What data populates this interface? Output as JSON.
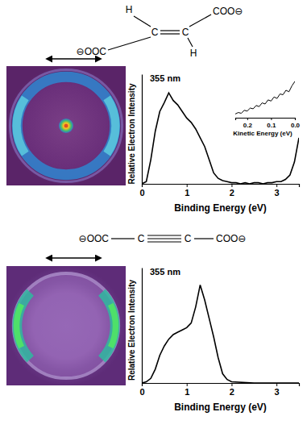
{
  "chart_data": [
    {
      "type": "line",
      "annotation": "355 nm",
      "y_label": "Relative Electron Intensity",
      "x_label": "Binding Energy (eV)",
      "x": [
        0,
        0.1,
        0.2,
        0.3,
        0.4,
        0.5,
        0.6,
        0.7,
        0.8,
        0.9,
        1.0,
        1.1,
        1.2,
        1.3,
        1.4,
        1.5,
        1.6,
        1.7,
        1.8,
        1.9,
        2.0,
        2.1,
        2.2,
        2.3,
        2.4,
        2.5,
        2.6,
        2.7,
        2.8,
        2.9,
        3.0,
        3.1,
        3.2,
        3.3,
        3.4,
        3.5
      ],
      "values": [
        0.0,
        0.02,
        0.22,
        0.48,
        0.66,
        0.74,
        0.83,
        0.76,
        0.72,
        0.66,
        0.6,
        0.56,
        0.5,
        0.42,
        0.34,
        0.22,
        0.1,
        0.05,
        0.03,
        0.02,
        0.01,
        0.01,
        0.0,
        0.01,
        0.0,
        0.01,
        0.01,
        0.0,
        0.01,
        0.01,
        0.02,
        0.02,
        0.04,
        0.08,
        0.2,
        0.42
      ],
      "xlim": [
        0,
        3.5
      ],
      "ylim": [
        0,
        1
      ],
      "xticks": [
        0,
        1,
        2,
        3
      ],
      "tick_labels": "x",
      "color": "#000000"
    },
    {
      "type": "line",
      "x_label": "Kinetic Energy (eV)",
      "x": [
        0.25,
        0.2375,
        0.225,
        0.2125,
        0.2,
        0.1875,
        0.175,
        0.1625,
        0.15,
        0.1375,
        0.125,
        0.1125,
        0.1,
        0.0875,
        0.075,
        0.0625,
        0.05,
        0.0375,
        0.025,
        0.0125,
        0
      ],
      "values": [
        0.1,
        0.14,
        0.12,
        0.2,
        0.18,
        0.26,
        0.24,
        0.33,
        0.3,
        0.4,
        0.37,
        0.48,
        0.45,
        0.56,
        0.52,
        0.64,
        0.62,
        0.74,
        0.7,
        0.86,
        0.98
      ],
      "xlim": [
        0.25,
        0
      ],
      "ylim": [
        0,
        1
      ],
      "xticks": [
        0.2,
        0.1,
        {
          "value": 0,
          "label": "0.0"
        }
      ],
      "tick_labels": "x",
      "color": "#000000"
    },
    {
      "type": "line",
      "annotation": "355 nm",
      "y_label": "Relative Electron Intensity",
      "x_label": "Binding Energy (eV)",
      "x": [
        0,
        0.1,
        0.2,
        0.3,
        0.4,
        0.5,
        0.6,
        0.7,
        0.8,
        0.9,
        1.0,
        1.1,
        1.2,
        1.3,
        1.4,
        1.5,
        1.6,
        1.7,
        1.8,
        1.9,
        2.0,
        2.5,
        3.0,
        3.5
      ],
      "values": [
        0,
        0.01,
        0.04,
        0.12,
        0.24,
        0.32,
        0.38,
        0.42,
        0.44,
        0.46,
        0.48,
        0.52,
        0.66,
        0.85,
        0.72,
        0.56,
        0.4,
        0.22,
        0.08,
        0.03,
        0.01,
        0.0,
        0.0,
        0.0
      ],
      "xlim": [
        0,
        3.5
      ],
      "ylim": [
        0,
        1
      ],
      "xticks": [
        0,
        1,
        2,
        3
      ],
      "tick_labels": "x",
      "color": "#000000"
    }
  ],
  "structures": [
    {
      "labels": [
        "H",
        "COO⊖",
        "C",
        "C",
        "⊖OOC",
        "H"
      ]
    },
    {
      "labels": [
        "⊖OOC",
        "C",
        "C",
        "COO⊖"
      ]
    }
  ]
}
